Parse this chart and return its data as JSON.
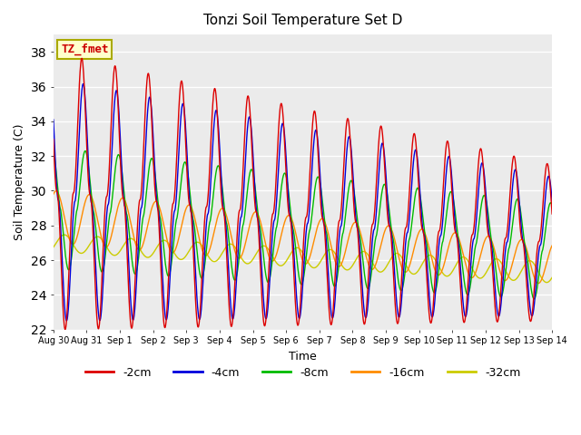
{
  "title": "Tonzi Soil Temperature Set D",
  "xlabel": "Time",
  "ylabel": "Soil Temperature (C)",
  "ylim": [
    22,
    39
  ],
  "yticks": [
    22,
    24,
    26,
    28,
    30,
    32,
    34,
    36,
    38
  ],
  "xtick_labels": [
    "Aug 30",
    "Aug 31",
    "Sep 1",
    "Sep 2",
    "Sep 3",
    "Sep 4",
    "Sep 5",
    "Sep 6",
    "Sep 7",
    "Sep 8",
    "Sep 9",
    "Sep 10",
    "Sep 11",
    "Sep 12",
    "Sep 13",
    "Sep 14"
  ],
  "series": {
    "-2cm": {
      "color": "#DD0000",
      "linewidth": 1.0
    },
    "-4cm": {
      "color": "#0000DD",
      "linewidth": 1.0
    },
    "-8cm": {
      "color": "#00BB00",
      "linewidth": 1.0
    },
    "-16cm": {
      "color": "#FF8C00",
      "linewidth": 1.0
    },
    "-32cm": {
      "color": "#CCCC00",
      "linewidth": 1.0
    }
  },
  "annotation_text": "TZ_fmet",
  "annotation_color": "#CC0000",
  "annotation_bg": "#FFFFCC",
  "annotation_border": "#AAAA00",
  "plot_bg_color": "#EBEBEB"
}
